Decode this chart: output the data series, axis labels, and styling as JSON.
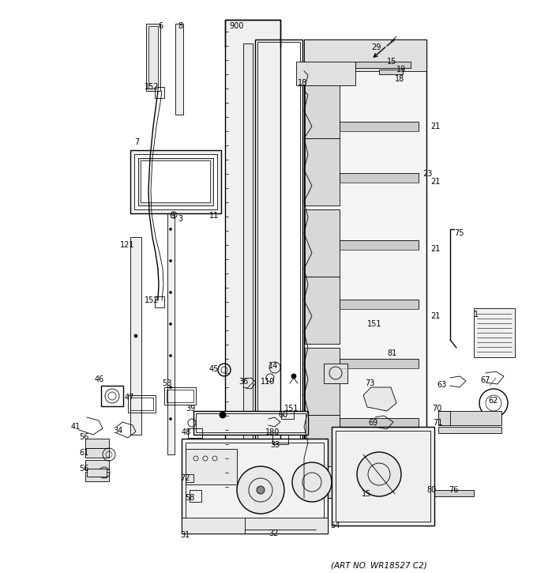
{
  "art_no": "(ART NO. WR18527 C2)",
  "bg_color": "#ffffff",
  "fig_width": 6.8,
  "fig_height": 7.25,
  "dpi": 100
}
